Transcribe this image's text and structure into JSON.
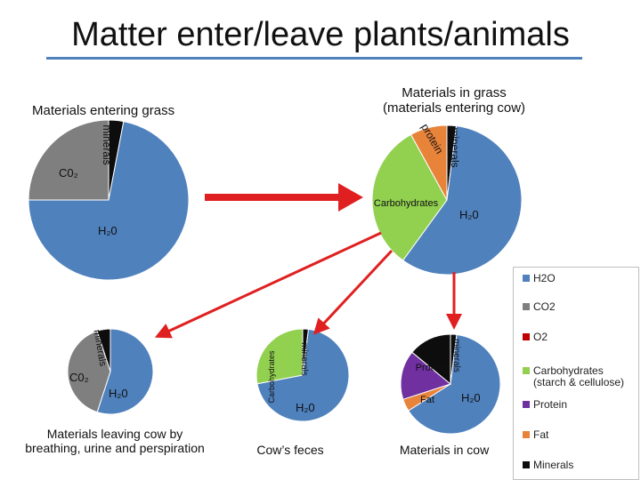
{
  "title": "Matter enter/leave plants/animals",
  "colors": {
    "h2o": "#4f81bd",
    "co2": "#7f7f7f",
    "o2": "#c00000",
    "carbohydrates": "#92d050",
    "protein": "#7030a0",
    "fat": "#e8833a",
    "minerals": "#0d0d0d",
    "arrow": "#e02020",
    "title_rule": "#4f81bd"
  },
  "labels": {
    "grass_in": "Materials entering grass",
    "grass": "Materials in grass\n(materials entering cow)",
    "cow_out": "Materials leaving cow by\nbreathing, urine and perspiration",
    "feces": "Cow’s feces",
    "cow": "Materials in cow"
  },
  "slice_labels": {
    "minerals": "minerals",
    "co2": "C0₂",
    "h2o": "H₂0",
    "protein": "protein",
    "carbohydrates": "Carbohydrates",
    "protein_cap": "Protein",
    "fat": "Fat"
  },
  "legend": [
    {
      "key": "h2o",
      "text": "H2O"
    },
    {
      "key": "co2",
      "text": "CO2"
    },
    {
      "key": "o2",
      "text": "O2"
    },
    {
      "key": "carbohydrates",
      "text": "Carbohydrates\n(starch & cellulose)"
    },
    {
      "key": "protein",
      "text": "Protein"
    },
    {
      "key": "fat",
      "text": "Fat"
    },
    {
      "key": "minerals",
      "text": "Minerals"
    }
  ],
  "chart_data": [
    {
      "type": "pie",
      "title": "Materials entering grass",
      "slices": [
        {
          "key": "minerals",
          "value": 3
        },
        {
          "key": "h2o",
          "value": 72
        },
        {
          "key": "co2",
          "value": 25
        }
      ]
    },
    {
      "type": "pie",
      "title": "Materials in grass (materials entering cow)",
      "slices": [
        {
          "key": "minerals",
          "value": 2
        },
        {
          "key": "h2o",
          "value": 58
        },
        {
          "key": "carbohydrates",
          "value": 32
        },
        {
          "key": "fat",
          "value": 8
        }
      ]
    },
    {
      "type": "pie",
      "title": "Materials leaving cow by breathing, urine and perspiration",
      "slices": [
        {
          "key": "h2o",
          "value": 55
        },
        {
          "key": "co2",
          "value": 40
        },
        {
          "key": "minerals",
          "value": 5
        }
      ]
    },
    {
      "type": "pie",
      "title": "Cow’s feces",
      "slices": [
        {
          "key": "minerals",
          "value": 2
        },
        {
          "key": "h2o",
          "value": 70
        },
        {
          "key": "carbohydrates",
          "value": 28
        }
      ]
    },
    {
      "type": "pie",
      "title": "Materials in cow",
      "slices": [
        {
          "key": "minerals",
          "value": 2
        },
        {
          "key": "h2o",
          "value": 64
        },
        {
          "key": "fat",
          "value": 4
        },
        {
          "key": "protein",
          "value": 16
        },
        {
          "key": "minerals",
          "value": 14
        }
      ]
    }
  ]
}
